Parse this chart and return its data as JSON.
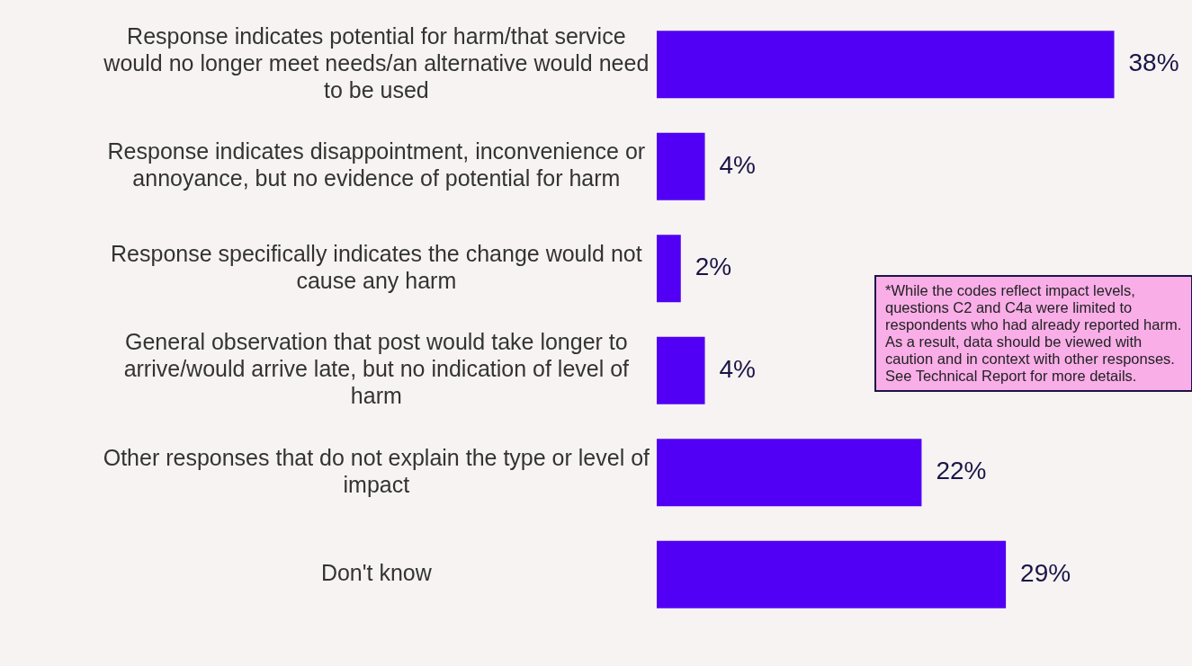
{
  "chart_data": {
    "type": "bar",
    "orientation": "horizontal",
    "categories": [
      "Response indicates potential for harm/that service would no longer meet needs/an alternative would need to be used",
      "Response indicates disappointment, inconvenience or annoyance, but no evidence of potential for harm",
      "Response specifically indicates the change would not cause any harm",
      "General observation that post would take longer to arrive/would arrive late, but no indication of level of harm",
      "Other responses that do not explain the type or level of impact",
      "Don't know"
    ],
    "values": [
      38,
      4,
      2,
      4,
      22,
      29
    ],
    "value_labels": [
      "38%",
      "4%",
      "2%",
      "4%",
      "22%",
      "29%"
    ],
    "color": "#5200f5",
    "legend": false,
    "tick_labels": "y",
    "annotations": [
      "*While the codes reflect impact levels, questions C2 and C4a were limited to respondents who had already reported harm. As a result, data should be viewed with caution and in context with other responses. See Technical Report for more details."
    ]
  }
}
